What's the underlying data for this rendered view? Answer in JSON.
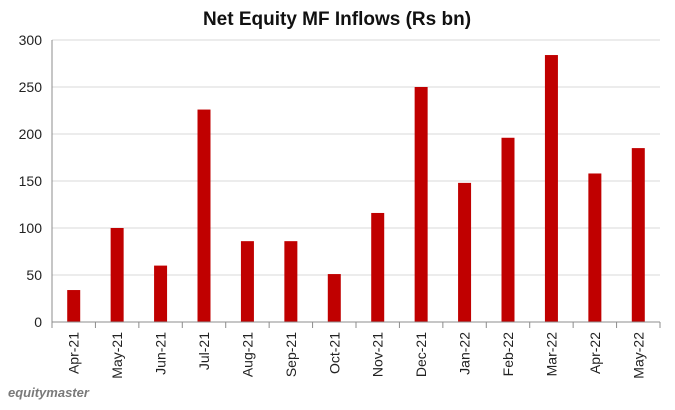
{
  "brand": "equitymaster",
  "chart_data": {
    "type": "bar",
    "title": "Net Equity MF Inflows (Rs bn)",
    "xlabel": "",
    "ylabel": "",
    "categories": [
      "Apr-21",
      "May-21",
      "Jun-21",
      "Jul-21",
      "Aug-21",
      "Sep-21",
      "Oct-21",
      "Nov-21",
      "Dec-21",
      "Jan-22",
      "Feb-22",
      "Mar-22",
      "Apr-22",
      "May-22"
    ],
    "values": [
      34,
      100,
      60,
      226,
      86,
      86,
      51,
      116,
      250,
      148,
      196,
      284,
      158,
      185
    ],
    "ylim": [
      0,
      300
    ],
    "yticks": [
      0,
      50,
      100,
      150,
      200,
      250,
      300
    ],
    "grid": true,
    "legend": "none",
    "bar_color": "#c00000"
  }
}
